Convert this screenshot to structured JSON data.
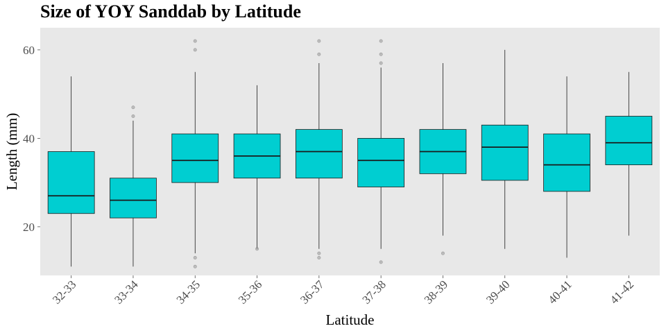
{
  "chart_data": {
    "type": "box",
    "title": "Size of YOY Sanddab by Latitude",
    "xlabel": "Latitude",
    "ylabel": "Length (mm)",
    "ylim": [
      9,
      65
    ],
    "yticks": [
      20,
      40,
      60
    ],
    "grid": false,
    "legend": "none",
    "colors": {
      "box_fill": "#00CED1",
      "box_stroke": "#1a1a1a",
      "panel_bg": "#e8e8e8",
      "outlier": "#999999"
    },
    "categories": [
      "32-33",
      "33-34",
      "34-35",
      "35-36",
      "36-37",
      "37-38",
      "38-39",
      "39-40",
      "40-41",
      "41-42"
    ],
    "boxes": [
      {
        "whisker_low": 11,
        "q1": 23,
        "median": 27,
        "q3": 37,
        "whisker_high": 54,
        "outliers": []
      },
      {
        "whisker_low": 11,
        "q1": 22,
        "median": 26,
        "q3": 31,
        "whisker_high": 44,
        "outliers": [
          45,
          47
        ]
      },
      {
        "whisker_low": 14,
        "q1": 30,
        "median": 35,
        "q3": 41,
        "whisker_high": 55,
        "outliers": [
          11,
          13,
          60,
          62
        ]
      },
      {
        "whisker_low": 15,
        "q1": 31,
        "median": 36,
        "q3": 41,
        "whisker_high": 52,
        "outliers": [
          15
        ]
      },
      {
        "whisker_low": 15,
        "q1": 31,
        "median": 37,
        "q3": 42,
        "whisker_high": 57,
        "outliers": [
          13,
          14,
          59,
          62
        ]
      },
      {
        "whisker_low": 15,
        "q1": 29,
        "median": 35,
        "q3": 40,
        "whisker_high": 56,
        "outliers": [
          12,
          57,
          59,
          62
        ]
      },
      {
        "whisker_low": 18,
        "q1": 32,
        "median": 37,
        "q3": 42,
        "whisker_high": 57,
        "outliers": [
          14
        ]
      },
      {
        "whisker_low": 15,
        "q1": 30.5,
        "median": 38,
        "q3": 43,
        "whisker_high": 60,
        "outliers": []
      },
      {
        "whisker_low": 13,
        "q1": 28,
        "median": 34,
        "q3": 41,
        "whisker_high": 54,
        "outliers": []
      },
      {
        "whisker_low": 18,
        "q1": 34,
        "median": 39,
        "q3": 45,
        "whisker_high": 55,
        "outliers": []
      }
    ]
  }
}
